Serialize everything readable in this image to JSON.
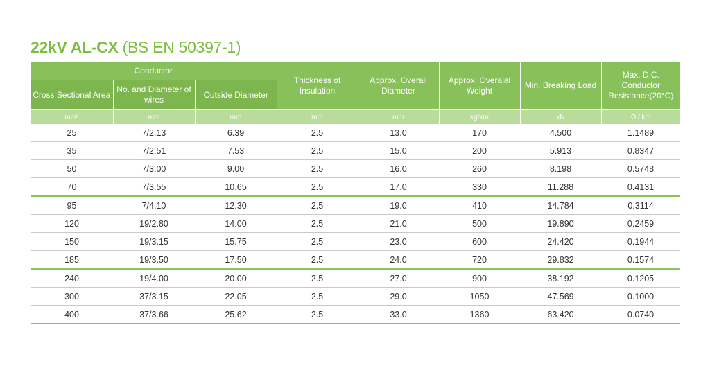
{
  "title": {
    "bold": "22kV AL-CX",
    "rest": " (BS EN 50397-1)"
  },
  "header": {
    "conductor_group": "Conductor",
    "columns": [
      "Cross Sectional Area",
      "No. and Diameter of wires",
      "Outside Diameter",
      "Thickness of Insulation",
      "Approx. Overall Diameter",
      "Approx. Overalal Weight",
      "Min. Breaking Load",
      "Max. D.C. Conductor Resistance(20°C)"
    ],
    "units": [
      "mm²",
      "mm",
      "mm",
      "mm",
      "mm",
      "kg/km",
      "kN",
      "Ω / km"
    ]
  },
  "rows": [
    [
      "25",
      "7/2.13",
      "6.39",
      "2.5",
      "13.0",
      "170",
      "4.500",
      "1.1489"
    ],
    [
      "35",
      "7/2.51",
      "7.53",
      "2.5",
      "15.0",
      "200",
      "5.913",
      "0.8347"
    ],
    [
      "50",
      "7/3.00",
      "9.00",
      "2.5",
      "16.0",
      "260",
      "8.198",
      "0.5748"
    ],
    [
      "70",
      "7/3.55",
      "10.65",
      "2.5",
      "17.0",
      "330",
      "11.288",
      "0.4131"
    ],
    [
      "95",
      "7/4.10",
      "12.30",
      "2.5",
      "19.0",
      "410",
      "14.784",
      "0.3114"
    ],
    [
      "120",
      "19/2.80",
      "14.00",
      "2.5",
      "21.0",
      "500",
      "19.890",
      "0.2459"
    ],
    [
      "150",
      "19/3.15",
      "15.75",
      "2.5",
      "23.0",
      "600",
      "24.420",
      "0.1944"
    ],
    [
      "185",
      "19/3.50",
      "17.50",
      "2.5",
      "24.0",
      "720",
      "29.832",
      "0.1574"
    ],
    [
      "240",
      "19/4.00",
      "20.00",
      "2.5",
      "27.0",
      "900",
      "38.192",
      "0.1205"
    ],
    [
      "300",
      "37/3.15",
      "22.05",
      "2.5",
      "29.0",
      "1050",
      "47.569",
      "0.1000"
    ],
    [
      "400",
      "37/3.66",
      "25.62",
      "2.5",
      "33.0",
      "1360",
      "63.420",
      "0.0740"
    ]
  ],
  "colors": {
    "accent": "#7cbf3e",
    "header_bg": "#88c05a",
    "units_bg": "#b9dc9a"
  }
}
